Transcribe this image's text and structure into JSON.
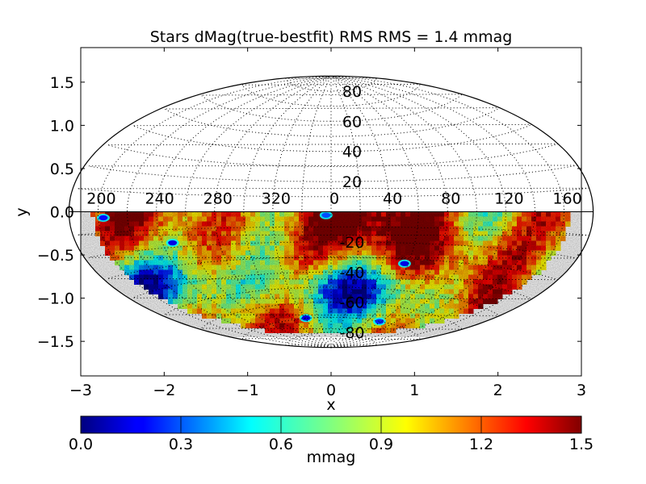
{
  "chart_data": {
    "type": "heatmap",
    "projection": "aitoff",
    "title": "Stars dMag(true-bestfit)  RMS  RMS =  1.4 mmag",
    "xlabel": "x",
    "ylabel": "y",
    "xlim": [
      -3,
      3
    ],
    "ylim": [
      -1.9,
      1.9
    ],
    "xticks": [
      -3,
      -2,
      -1,
      0,
      1,
      2,
      3
    ],
    "xtick_labels": [
      "−3",
      "−2",
      "−1",
      "0",
      "1",
      "2",
      "3"
    ],
    "yticks": [
      1.5,
      1.0,
      0.5,
      0.0,
      -0.5,
      -1.0,
      -1.5
    ],
    "ytick_labels": [
      "1.5",
      "1.0",
      "0.5",
      "0.0",
      "−0.5",
      "−1.0",
      "−1.5"
    ],
    "grid": true,
    "graticule": {
      "longitude_labels": [
        {
          "lon": 200,
          "text": "200"
        },
        {
          "lon": 240,
          "text": "240"
        },
        {
          "lon": 280,
          "text": "280"
        },
        {
          "lon": 320,
          "text": "320"
        },
        {
          "lon": 0,
          "text": "0"
        },
        {
          "lon": 40,
          "text": "40"
        },
        {
          "lon": 80,
          "text": "80"
        },
        {
          "lon": 120,
          "text": "120"
        },
        {
          "lon": 160,
          "text": "160"
        }
      ],
      "latitude_labels": [
        {
          "lat": 80,
          "text": "80"
        },
        {
          "lat": 60,
          "text": "60"
        },
        {
          "lat": 40,
          "text": "40"
        },
        {
          "lat": 20,
          "text": "20"
        },
        {
          "lat": -20,
          "text": "-20"
        },
        {
          "lat": -40,
          "text": "-40"
        },
        {
          "lat": -60,
          "text": "-60"
        },
        {
          "lat": -80,
          "text": "-80"
        }
      ]
    },
    "data_region": "southern hemisphere (dec < 0)",
    "colorbar": {
      "label": "mmag",
      "colormap": "jet",
      "range": [
        0.0,
        1.5
      ],
      "ticks": [
        0.0,
        0.3,
        0.6,
        0.9,
        1.2,
        1.5
      ],
      "tick_labels": [
        "0.0",
        "0.3",
        "0.6",
        "0.9",
        "1.2",
        "1.5"
      ]
    },
    "low_value_spots": [
      {
        "x": -2.73,
        "y": -0.07,
        "value": 0.2
      },
      {
        "x": -1.9,
        "y": -0.36,
        "value": 0.15
      },
      {
        "x": -0.06,
        "y": -0.04,
        "value": 0.3
      },
      {
        "x": 0.88,
        "y": -0.6,
        "value": 0.15
      },
      {
        "x": -0.3,
        "y": -1.23,
        "value": 0.15
      },
      {
        "x": 0.58,
        "y": -1.27,
        "value": 0.25
      }
    ],
    "colors": {
      "high": "#800000",
      "mid": "#80ff80",
      "low": "#00007f"
    }
  }
}
